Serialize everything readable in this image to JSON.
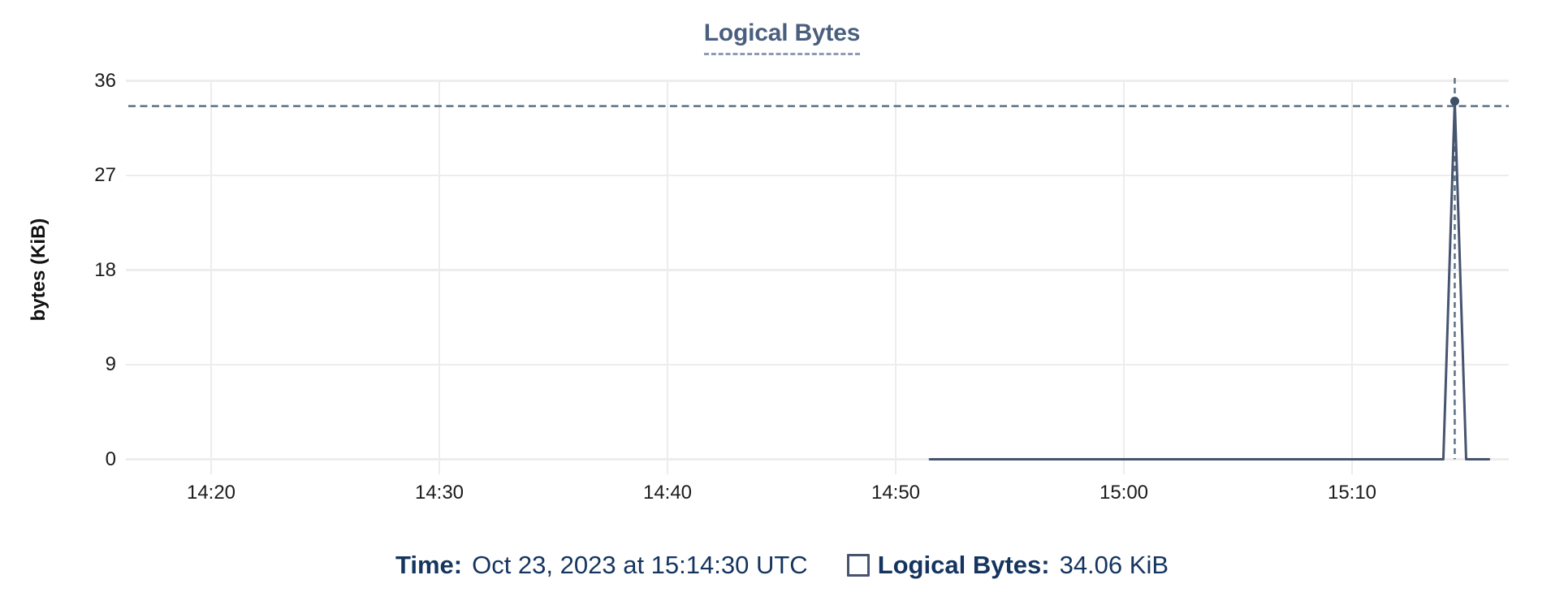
{
  "chart": {
    "title": "Logical Bytes",
    "y_axis": {
      "label": "bytes (KiB)",
      "tick_values": [
        36,
        27,
        18,
        9,
        0
      ]
    },
    "x_axis": {
      "tick_labels": [
        "14:20",
        "14:30",
        "14:40",
        "14:50",
        "15:00",
        "15:10"
      ]
    }
  },
  "chart_data": {
    "type": "line",
    "title": "Logical Bytes",
    "xlabel": "",
    "ylabel": "bytes (KiB)",
    "ylim": [
      0,
      36
    ],
    "x_range": [
      "14:16:15",
      "15:16:50"
    ],
    "grid": true,
    "legend_position": "bottom",
    "series": [
      {
        "name": "Logical Bytes",
        "points": [
          {
            "time": "14:51:30",
            "value": 0
          },
          {
            "time": "15:14:00",
            "value": 0
          },
          {
            "time": "15:14:30",
            "value": 34.06
          },
          {
            "time": "15:15:00",
            "value": 0
          },
          {
            "time": "15:16:00",
            "value": 0
          }
        ]
      }
    ],
    "highlight": {
      "time": "15:14:30",
      "value": 34.06
    }
  },
  "tooltip": {
    "time_label": "Time:",
    "time_value": "Oct 23, 2023 at 15:14:30 UTC",
    "series_label": "Logical Bytes:",
    "series_value": "34.06 KiB"
  },
  "colors": {
    "line": "#46546f",
    "dot": "#3e4f6a",
    "crosshair": "#5c7085",
    "gridline": "#ededed",
    "title": "#4a5f7e",
    "title_underline": "#8d9cb4",
    "tooltip_text": "#15355f",
    "tick_text": "#1b1b1b"
  }
}
